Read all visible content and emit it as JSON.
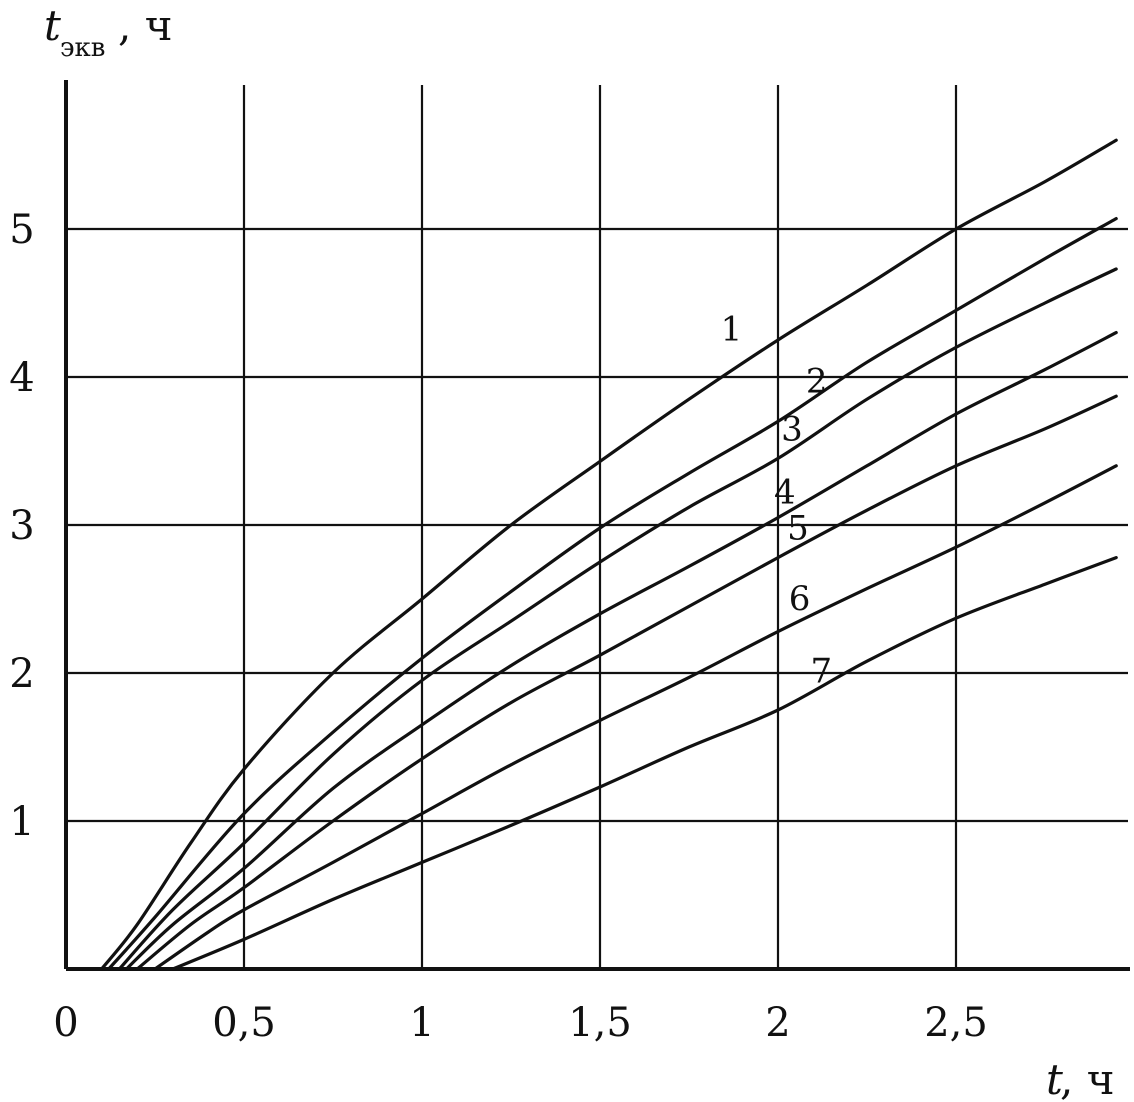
{
  "chart_data": {
    "type": "line",
    "ylabel": {
      "main": "t",
      "sub": "экв",
      "unit": ", ч"
    },
    "xlabel": {
      "main": "t",
      "unit": ", ч"
    },
    "x_ticks": [
      "0",
      "0,5",
      "1",
      "1,5",
      "2",
      "2,5"
    ],
    "y_ticks": [
      "1",
      "2",
      "3",
      "4",
      "5"
    ],
    "xlim": [
      0,
      2.95
    ],
    "ylim": [
      0,
      6
    ],
    "grid": true,
    "series": [
      {
        "name": "1",
        "x": [
          0.1,
          0.2,
          0.35,
          0.5,
          0.75,
          1.0,
          1.25,
          1.5,
          1.75,
          2.0,
          2.25,
          2.5,
          2.75,
          2.95
        ],
        "y": [
          0,
          0.3,
          0.85,
          1.35,
          2.0,
          2.5,
          3.0,
          3.43,
          3.85,
          4.25,
          4.62,
          5.0,
          5.32,
          5.6
        ]
      },
      {
        "name": "2",
        "x": [
          0.12,
          0.25,
          0.5,
          0.75,
          1.0,
          1.25,
          1.5,
          1.75,
          2.0,
          2.25,
          2.5,
          2.75,
          2.95
        ],
        "y": [
          0,
          0.35,
          1.05,
          1.6,
          2.1,
          2.55,
          2.98,
          3.35,
          3.7,
          4.1,
          4.45,
          4.8,
          5.07
        ]
      },
      {
        "name": "3",
        "x": [
          0.15,
          0.3,
          0.5,
          0.75,
          1.0,
          1.25,
          1.5,
          1.75,
          2.0,
          2.25,
          2.5,
          2.75,
          2.95
        ],
        "y": [
          0,
          0.4,
          0.85,
          1.45,
          1.95,
          2.35,
          2.75,
          3.12,
          3.45,
          3.85,
          4.2,
          4.5,
          4.73
        ]
      },
      {
        "name": "4",
        "x": [
          0.17,
          0.3,
          0.5,
          0.75,
          1.0,
          1.25,
          1.5,
          1.75,
          2.0,
          2.25,
          2.5,
          2.75,
          2.95
        ],
        "y": [
          0,
          0.3,
          0.68,
          1.22,
          1.65,
          2.05,
          2.4,
          2.72,
          3.05,
          3.4,
          3.75,
          4.05,
          4.3
        ]
      },
      {
        "name": "5",
        "x": [
          0.2,
          0.35,
          0.5,
          0.75,
          1.0,
          1.25,
          1.5,
          1.75,
          2.0,
          2.25,
          2.5,
          2.75,
          2.95
        ],
        "y": [
          0,
          0.3,
          0.55,
          1.0,
          1.42,
          1.8,
          2.12,
          2.45,
          2.78,
          3.1,
          3.4,
          3.65,
          3.87
        ]
      },
      {
        "name": "6",
        "x": [
          0.25,
          0.4,
          0.5,
          0.75,
          1.0,
          1.25,
          1.5,
          1.75,
          2.0,
          2.25,
          2.5,
          2.75,
          2.95
        ],
        "y": [
          0,
          0.25,
          0.4,
          0.72,
          1.05,
          1.38,
          1.68,
          1.97,
          2.28,
          2.57,
          2.85,
          3.15,
          3.4
        ]
      },
      {
        "name": "7",
        "x": [
          0.3,
          0.5,
          0.75,
          1.0,
          1.25,
          1.5,
          1.75,
          2.0,
          2.25,
          2.5,
          2.75,
          2.95
        ],
        "y": [
          0,
          0.2,
          0.47,
          0.72,
          0.97,
          1.23,
          1.5,
          1.75,
          2.08,
          2.37,
          2.6,
          2.78
        ]
      }
    ]
  }
}
